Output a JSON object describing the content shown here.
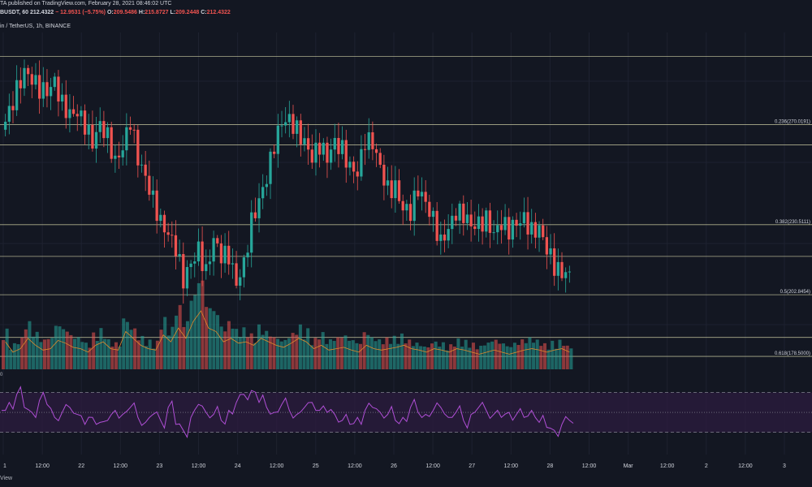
{
  "header": {
    "publisher_line": "TA published on TradingView.com, February 28, 2021 08:46:02 UTC",
    "symbol": "BUSDT, 60",
    "price": "212.4322",
    "change": "− 12.9531 (−5.75%)",
    "o_label": "O:",
    "o_value": "209.5486",
    "h_label": "H:",
    "h_value": "215.8727",
    "l_label": "L:",
    "l_value": "209.2448",
    "c_label": "C:",
    "c_value": "212.4322",
    "pair_line": "in / TetherUS, 1h, BINANCE"
  },
  "rsi_label": "0",
  "footer_text": "View",
  "colors": {
    "background": "#131722",
    "bull": "#26a69a",
    "bear": "#ef5350",
    "fib_line": "#c9c9a0",
    "grid": "#1e2230",
    "rsi_line": "#b04fd6",
    "rsi_band": "#2a1c3d",
    "ma_line": "#e08a2c"
  },
  "chart_data": {
    "type": "candlestick",
    "timeframe": "1h",
    "x_tick_labels": [
      "1",
      "12:00",
      "22",
      "12:00",
      "23",
      "12:00",
      "24",
      "12:00",
      "25",
      "12:00",
      "26",
      "12:00",
      "27",
      "12:00",
      "28",
      "12:00",
      "Mar",
      "12:00",
      "2",
      "12:00",
      "3"
    ],
    "fib_levels": [
      {
        "label": "0.236(270.0191)",
        "value": 270.0191
      },
      {
        "label": "0.382(230.5111)",
        "value": 230.5111
      },
      {
        "label": "0.5(202.8454)",
        "value": 202.8454
      },
      {
        "label": "0.618(178.5000)",
        "value": 178.5
      }
    ],
    "horizontal_levels": [
      297,
      270.0191,
      262,
      230.5111,
      218,
      202.8454,
      186,
      178.5
    ],
    "price_range": [
      175,
      300
    ],
    "price_path": [
      268,
      274,
      284,
      292,
      289,
      284,
      282,
      286,
      278,
      275,
      276,
      270,
      262,
      269,
      265,
      256,
      262,
      272,
      256,
      248,
      240,
      232,
      228,
      222,
      208,
      214,
      220,
      212,
      226,
      219,
      218,
      206,
      214,
      232,
      241,
      250,
      262,
      270,
      271,
      268,
      264,
      258,
      262,
      256,
      262,
      260,
      254,
      252,
      264,
      262,
      252,
      244,
      246,
      238,
      236,
      244,
      238,
      232,
      224,
      230,
      236,
      234,
      229,
      230,
      233,
      228,
      232,
      228,
      230,
      232,
      228,
      230,
      222,
      214,
      210,
      212
    ],
    "volume_scale_note": "relative",
    "volume": [
      40,
      25,
      30,
      45,
      35,
      28,
      30,
      42,
      38,
      32,
      30,
      25,
      35,
      40,
      30,
      28,
      55,
      45,
      35,
      30,
      28,
      50,
      40,
      60,
      45,
      70,
      85,
      60,
      55,
      40,
      45,
      38,
      40,
      35,
      45,
      40,
      35,
      32,
      38,
      45,
      40,
      30,
      35,
      28,
      30,
      32,
      28,
      25,
      35,
      30,
      28,
      30,
      32,
      35,
      30,
      28,
      25,
      30,
      28,
      25,
      30,
      28,
      25,
      22,
      25,
      28,
      25,
      22,
      25,
      28,
      30,
      28,
      25,
      28,
      30,
      25
    ],
    "rsi": [
      52,
      60,
      68,
      55,
      50,
      62,
      58,
      45,
      50,
      55,
      48,
      38,
      45,
      40,
      42,
      52,
      48,
      55,
      45,
      40,
      48,
      42,
      55,
      38,
      32,
      45,
      58,
      50,
      48,
      42,
      52,
      60,
      68,
      72,
      60,
      55,
      50,
      58,
      52,
      48,
      55,
      60,
      52,
      50,
      48,
      42,
      38,
      45,
      52,
      55,
      50,
      48,
      42,
      45,
      55,
      50,
      48,
      52,
      55,
      45,
      50,
      42,
      48,
      55,
      52,
      48,
      45,
      50,
      48,
      45,
      52,
      40,
      35,
      32,
      38,
      42
    ],
    "rsi_levels": [
      70,
      50,
      30
    ],
    "rsi_range": [
      20,
      85
    ]
  }
}
